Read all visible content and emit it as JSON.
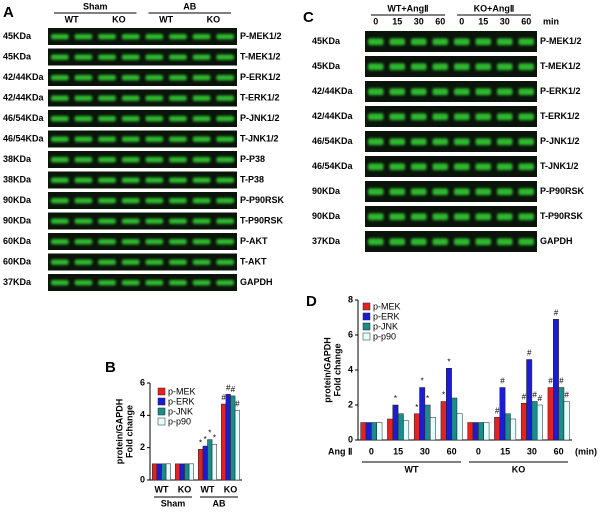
{
  "blot_A": {
    "panel": "A",
    "groups": [
      "Sham",
      "AB"
    ],
    "genotypes": [
      "WT",
      "KO",
      "WT",
      "KO"
    ],
    "rows": [
      {
        "size": "45KDa",
        "protein": "P-MEK1/2"
      },
      {
        "size": "45KDa",
        "protein": "T-MEK1/2"
      },
      {
        "size": "42/44KDa",
        "protein": "P-ERK1/2"
      },
      {
        "size": "42/44KDa",
        "protein": "T-ERK1/2"
      },
      {
        "size": "46/54KDa",
        "protein": "P-JNK1/2"
      },
      {
        "size": "46/54KDa",
        "protein": "T-JNK1/2"
      },
      {
        "size": "38KDa",
        "protein": "P-P38"
      },
      {
        "size": "38KDa",
        "protein": "T-P38"
      },
      {
        "size": "90KDa",
        "protein": "P-P90RSK"
      },
      {
        "size": "90KDa",
        "protein": "T-P90RSK"
      },
      {
        "size": "60KDa",
        "protein": "P-AKT"
      },
      {
        "size": "60KDa",
        "protein": "T-AKT"
      },
      {
        "size": "37KDa",
        "protein": "GAPDH"
      }
    ]
  },
  "blot_C": {
    "panel": "C",
    "groups": [
      "WT+AngⅡ",
      "KO+AngⅡ"
    ],
    "times": [
      "0",
      "15",
      "30",
      "60",
      "0",
      "15",
      "30",
      "60"
    ],
    "unit": "min",
    "rows": [
      {
        "size": "45KDa",
        "protein": "P-MEK1/2"
      },
      {
        "size": "45KDa",
        "protein": "T-MEK1/2"
      },
      {
        "size": "42/44KDa",
        "protein": "P-ERK1/2"
      },
      {
        "size": "42/44KDa",
        "protein": "T-ERK1/2"
      },
      {
        "size": "46/54KDa",
        "protein": "P-JNK1/2"
      },
      {
        "size": "46/54KDa",
        "protein": "T-JNK1/2"
      },
      {
        "size": "90KDa",
        "protein": "P-P90RSK"
      },
      {
        "size": "90KDa",
        "protein": "T-P90RSK"
      },
      {
        "size": "37KDa",
        "protein": "GAPDH"
      }
    ]
  },
  "chart_data": [
    {
      "type": "bar",
      "panel": "B",
      "ylabel": "protein/GAPDH",
      "ylabel2": "Fold change",
      "categories": [
        "WT",
        "KO",
        "WT",
        "KO"
      ],
      "groups": [
        "Sham",
        "AB"
      ],
      "ylim": [
        0,
        6
      ],
      "yticks": [
        0,
        2,
        4,
        6
      ],
      "series": [
        {
          "name": "p-MEK",
          "color": "#e52222",
          "values": [
            1.0,
            1.0,
            1.9,
            4.7
          ],
          "markers": [
            null,
            null,
            "*",
            "#"
          ]
        },
        {
          "name": "p-ERK",
          "color": "#1c1cd4",
          "values": [
            1.0,
            1.0,
            2.1,
            5.3
          ],
          "markers": [
            null,
            null,
            "*",
            "#"
          ]
        },
        {
          "name": "p-JNK",
          "color": "#1b8c8c",
          "values": [
            1.0,
            1.0,
            2.5,
            5.2
          ],
          "markers": [
            null,
            null,
            "*",
            "#"
          ]
        },
        {
          "name": "p-p90",
          "color": "#e4ffff",
          "values": [
            1.0,
            1.0,
            2.2,
            4.3
          ],
          "markers": [
            null,
            null,
            "*",
            "#"
          ]
        }
      ]
    },
    {
      "type": "bar",
      "panel": "D",
      "ylabel": "protein/GAPDH",
      "ylabel2": "Fold change",
      "categories": [
        "0",
        "15",
        "30",
        "60",
        "0",
        "15",
        "30",
        "60"
      ],
      "groups": [
        "WT",
        "KO"
      ],
      "x_prefix": "Ang Ⅱ",
      "x_unit": "(min)",
      "ylim": [
        0,
        8
      ],
      "yticks": [
        0,
        2,
        4,
        6,
        8
      ],
      "series": [
        {
          "name": "p-MEK",
          "color": "#e52222",
          "values": [
            1.0,
            1.2,
            1.5,
            2.2,
            1.0,
            1.3,
            2.1,
            3.0
          ],
          "markers": [
            null,
            null,
            "*",
            "*",
            null,
            "#",
            "#",
            "#"
          ]
        },
        {
          "name": "p-ERK",
          "color": "#1c1cd4",
          "values": [
            1.0,
            2.0,
            3.0,
            4.1,
            1.0,
            3.0,
            4.6,
            6.9
          ],
          "markers": [
            null,
            "*",
            "*",
            "*",
            null,
            "#",
            "#",
            "#"
          ]
        },
        {
          "name": "p-JNK",
          "color": "#1b8c8c",
          "values": [
            1.0,
            1.5,
            2.0,
            2.4,
            1.0,
            1.5,
            2.2,
            3.0
          ],
          "markers": [
            null,
            null,
            "*",
            null,
            null,
            null,
            "#",
            "#"
          ]
        },
        {
          "name": "p-p90",
          "color": "#e4ffff",
          "values": [
            1.0,
            1.1,
            1.3,
            1.5,
            1.0,
            1.2,
            2.0,
            2.2
          ],
          "markers": [
            null,
            null,
            null,
            null,
            null,
            null,
            "#",
            "#"
          ]
        }
      ]
    }
  ]
}
